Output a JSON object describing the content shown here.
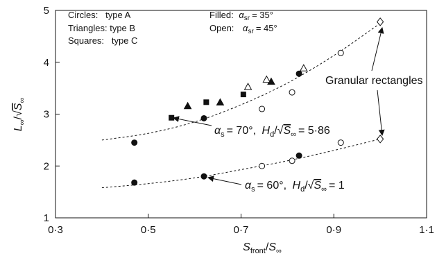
{
  "chart_data": {
    "type": "scatter",
    "xlabel": "Sfront/S∞",
    "ylabel": "L∞/√S∞",
    "xlim": [
      0.3,
      1.1
    ],
    "ylim": [
      1,
      5
    ],
    "x_ticks": [
      0.3,
      0.5,
      0.7,
      0.9,
      1.1
    ],
    "x_tick_labels": [
      "0·3",
      "0·5",
      "0·7",
      "0·9",
      "1·1"
    ],
    "y_ticks": [
      1,
      2,
      3,
      4,
      5
    ],
    "y_tick_labels": [
      "1",
      "2",
      "3",
      "4",
      "5"
    ],
    "grid": false,
    "legend_notes": {
      "circles": "Circles:   type A",
      "triangles": "Triangles: type B",
      "squares": "Squares:   type C",
      "filled_prefix": "Filled:",
      "filled_value": "= 35°",
      "open_prefix": "Open:",
      "open_value": "= 45°",
      "alpha_sub": "sr"
    },
    "series": [
      {
        "marker": "circle",
        "filled": true,
        "x": [
          0.47,
          0.47,
          0.62,
          0.62,
          0.825,
          0.825
        ],
        "y": [
          1.68,
          2.45,
          1.8,
          2.92,
          2.2,
          3.78
        ]
      },
      {
        "marker": "circle",
        "filled": false,
        "x": [
          0.745,
          0.745,
          0.81,
          0.81,
          0.915,
          0.915
        ],
        "y": [
          2.0,
          3.1,
          2.1,
          3.42,
          2.45,
          4.18
        ]
      },
      {
        "marker": "triangle",
        "filled": true,
        "x": [
          0.585,
          0.655,
          0.765
        ],
        "y": [
          3.15,
          3.22,
          3.62
        ]
      },
      {
        "marker": "triangle",
        "filled": false,
        "x": [
          0.715,
          0.755,
          0.835
        ],
        "y": [
          3.52,
          3.66,
          3.88
        ]
      },
      {
        "marker": "square",
        "filled": true,
        "x": [
          0.55,
          0.625,
          0.705
        ],
        "y": [
          2.93,
          3.23,
          3.38
        ]
      },
      {
        "marker": "diamond",
        "filled": false,
        "x": [
          1.0,
          1.0
        ],
        "y": [
          2.52,
          4.78
        ]
      }
    ],
    "curves": [
      {
        "x": [
          0.4,
          0.5,
          0.6,
          0.7,
          0.8,
          0.9,
          1.0
        ],
        "y": [
          2.5,
          2.63,
          2.85,
          3.18,
          3.6,
          4.13,
          4.75
        ]
      },
      {
        "x": [
          0.4,
          0.5,
          0.6,
          0.7,
          0.8,
          0.9,
          1.0
        ],
        "y": [
          1.58,
          1.66,
          1.77,
          1.93,
          2.1,
          2.3,
          2.52
        ]
      }
    ],
    "annotations": {
      "granular": "Granular rectangles",
      "upper_curve": {
        "alpha": "= 70°,",
        "h": "= 5·86"
      },
      "lower_curve": {
        "alpha": "= 60°,",
        "h": "= 1"
      }
    }
  }
}
